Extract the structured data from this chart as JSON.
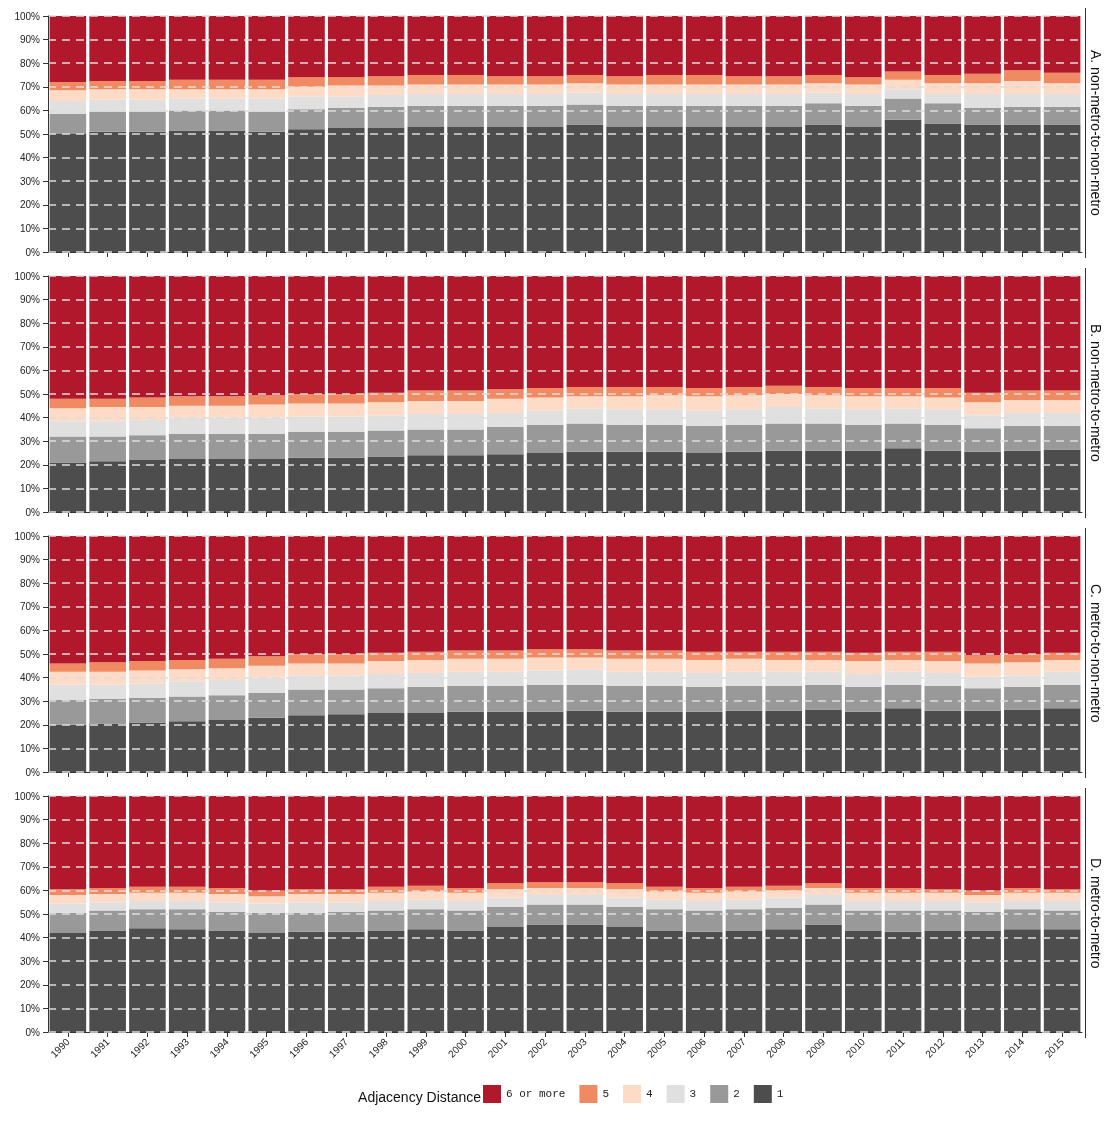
{
  "chart_data": [
    {
      "type": "bar",
      "title": "A. non-metro-to-non-metro",
      "stacked": true,
      "grid": "y",
      "tick_labels": "y",
      "ylim": [
        0,
        100
      ],
      "yticks": [
        {
          "value": 0,
          "label": "0%"
        },
        {
          "value": 10,
          "label": "10%"
        },
        {
          "value": 20,
          "label": "20%"
        },
        {
          "value": 30,
          "label": "30%"
        },
        {
          "value": 40,
          "label": "40%"
        },
        {
          "value": 50,
          "label": "50%"
        },
        {
          "value": 60,
          "label": "60%"
        },
        {
          "value": 70,
          "label": "70%"
        },
        {
          "value": 80,
          "label": "80%"
        },
        {
          "value": 90,
          "label": "90%"
        },
        {
          "value": 100,
          "label": "100%"
        }
      ],
      "categories": [
        "1990",
        "1991",
        "1992",
        "1993",
        "1994",
        "1995",
        "1996",
        "1997",
        "1998",
        "1999",
        "2000",
        "2001",
        "2002",
        "2003",
        "2004",
        "2005",
        "2006",
        "2007",
        "2008",
        "2009",
        "2010",
        "2011",
        "2012",
        "2013",
        "2014",
        "2015"
      ],
      "series": [
        {
          "color": "#4d4d4d",
          "values": [
            50,
            51,
            51,
            51.5,
            51.5,
            51,
            52,
            52.5,
            52.5,
            53,
            53,
            53,
            53,
            54,
            53,
            53,
            53,
            53,
            53,
            54,
            53,
            56,
            54.5,
            54,
            54,
            54
          ]
        },
        {
          "color": "#999999",
          "values": [
            8.5,
            8.5,
            8.5,
            8.5,
            8.5,
            8.5,
            8.5,
            8.5,
            9,
            9,
            9,
            9,
            9,
            8.5,
            9,
            9,
            9,
            9,
            9,
            9,
            9,
            9,
            8.5,
            7,
            7.5,
            7.5
          ]
        },
        {
          "color": "#e0e0e0",
          "values": [
            5.5,
            5,
            5,
            5,
            5,
            5.5,
            5.5,
            5,
            5,
            5,
            5,
            5,
            5,
            5,
            5,
            5,
            5,
            5,
            5,
            4.5,
            5,
            4,
            4,
            6,
            5.5,
            5.5
          ]
        },
        {
          "color": "#fddbc7",
          "values": [
            4.5,
            4.5,
            4.5,
            4,
            4,
            4,
            4,
            4.5,
            4,
            4,
            4,
            4,
            4,
            4,
            4,
            4,
            4,
            4,
            4,
            4,
            4,
            4,
            4.5,
            4.5,
            5.5,
            4.5
          ]
        },
        {
          "color": "#ef8a62",
          "values": [
            3.5,
            3.5,
            3.5,
            4,
            4,
            4,
            4,
            3.5,
            4,
            4,
            4,
            3.5,
            3.5,
            3.5,
            3.5,
            4,
            4,
            3.5,
            3.5,
            3.5,
            3,
            3.5,
            3.5,
            4,
            4.5,
            4.5
          ]
        },
        {
          "color": "#b2182b",
          "values": [
            28,
            27.5,
            27.5,
            27,
            27,
            27,
            26,
            26,
            25.5,
            25,
            25,
            25.5,
            25.5,
            25,
            25.5,
            25,
            25,
            25.5,
            25.5,
            25,
            26,
            23.5,
            25,
            24.5,
            23,
            24
          ]
        }
      ]
    },
    {
      "type": "bar",
      "title": "B. non-metro-to-metro",
      "stacked": true,
      "grid": "y",
      "tick_labels": "y",
      "ylim": [
        0,
        100
      ],
      "yticks": [
        {
          "value": 0,
          "label": "0%"
        },
        {
          "value": 10,
          "label": "10%"
        },
        {
          "value": 20,
          "label": "20%"
        },
        {
          "value": 30,
          "label": "30%"
        },
        {
          "value": 40,
          "label": "40%"
        },
        {
          "value": 50,
          "label": "50%"
        },
        {
          "value": 60,
          "label": "60%"
        },
        {
          "value": 70,
          "label": "70%"
        },
        {
          "value": 80,
          "label": "80%"
        },
        {
          "value": 90,
          "label": "90%"
        },
        {
          "value": 100,
          "label": "100%"
        }
      ],
      "categories": [
        "1990",
        "1991",
        "1992",
        "1993",
        "1994",
        "1995",
        "1996",
        "1997",
        "1998",
        "1999",
        "2000",
        "2001",
        "2002",
        "2003",
        "2004",
        "2005",
        "2006",
        "2007",
        "2008",
        "2009",
        "2010",
        "2011",
        "2012",
        "2013",
        "2014",
        "2015"
      ],
      "series": [
        {
          "color": "#4d4d4d",
          "values": [
            21,
            21.5,
            22,
            22.5,
            22.5,
            22.5,
            23,
            23,
            23.5,
            24,
            24,
            24.5,
            25,
            25.5,
            25.5,
            25.5,
            25,
            25.5,
            26,
            26,
            26,
            27,
            26,
            25.5,
            26,
            26.5
          ]
        },
        {
          "color": "#999999",
          "values": [
            11,
            10.5,
            10.5,
            10.5,
            10.5,
            10.5,
            11,
            11,
            11,
            11,
            11,
            11.5,
            12,
            12,
            11.5,
            11.5,
            11.5,
            11.5,
            11.5,
            11.5,
            11,
            10.5,
            11,
            10,
            10.5,
            10
          ]
        },
        {
          "color": "#e0e0e0",
          "values": [
            6.5,
            6.5,
            6.5,
            7,
            7,
            7,
            6.5,
            6.5,
            6.5,
            6.5,
            6.5,
            6,
            6,
            6.5,
            6.5,
            6.5,
            6.5,
            6.5,
            7,
            6.5,
            6.5,
            6.5,
            6.5,
            5.5,
            5.5,
            5.5
          ]
        },
        {
          "color": "#fddbc7",
          "values": [
            5.5,
            6,
            5.5,
            5,
            5,
            5.5,
            5.5,
            5.5,
            5.5,
            5.5,
            5.5,
            6,
            5.5,
            5,
            5.5,
            6,
            6,
            6,
            5.5,
            5.5,
            5.5,
            5,
            5,
            5.5,
            5.5,
            5.5
          ]
        },
        {
          "color": "#ef8a62",
          "values": [
            4,
            3.5,
            4,
            4,
            4,
            4,
            4,
            4,
            4,
            4.5,
            4.5,
            4,
            4,
            4,
            4,
            3.5,
            3.5,
            3.5,
            3.5,
            3.5,
            3.5,
            3.5,
            4,
            4,
            4,
            4
          ]
        },
        {
          "color": "#b2182b",
          "values": [
            52,
            52,
            51.5,
            51,
            51,
            50.5,
            50,
            50,
            49.5,
            48.5,
            48.5,
            48,
            47.5,
            47,
            47,
            47,
            47.5,
            47,
            46.5,
            47,
            47.5,
            47.5,
            47.5,
            49.5,
            48.5,
            48.5
          ]
        }
      ]
    },
    {
      "type": "bar",
      "title": "C. metro-to-non-metro",
      "stacked": true,
      "grid": "y",
      "tick_labels": "y",
      "ylim": [
        0,
        100
      ],
      "yticks": [
        {
          "value": 0,
          "label": "0%"
        },
        {
          "value": 10,
          "label": "10%"
        },
        {
          "value": 20,
          "label": "20%"
        },
        {
          "value": 30,
          "label": "30%"
        },
        {
          "value": 40,
          "label": "40%"
        },
        {
          "value": 50,
          "label": "50%"
        },
        {
          "value": 60,
          "label": "60%"
        },
        {
          "value": 70,
          "label": "70%"
        },
        {
          "value": 80,
          "label": "80%"
        },
        {
          "value": 90,
          "label": "90%"
        },
        {
          "value": 100,
          "label": "100%"
        }
      ],
      "categories": [
        "1990",
        "1991",
        "1992",
        "1993",
        "1994",
        "1995",
        "1996",
        "1997",
        "1998",
        "1999",
        "2000",
        "2001",
        "2002",
        "2003",
        "2004",
        "2005",
        "2006",
        "2007",
        "2008",
        "2009",
        "2010",
        "2011",
        "2012",
        "2013",
        "2014",
        "2015"
      ],
      "series": [
        {
          "color": "#4d4d4d",
          "values": [
            20,
            20.5,
            21,
            21.5,
            22,
            23,
            24,
            24.5,
            25,
            25,
            25.5,
            25.5,
            25.5,
            26,
            25.5,
            25.5,
            25.5,
            26,
            26,
            26.5,
            25.5,
            27,
            26,
            26,
            26.5,
            27
          ]
        },
        {
          "color": "#999999",
          "values": [
            10.5,
            10.5,
            10.5,
            10.5,
            10.5,
            10.5,
            11,
            10.5,
            10.5,
            11,
            11,
            11,
            11.5,
            11,
            11,
            11,
            10.5,
            10.5,
            10.5,
            10.5,
            10.5,
            10,
            10.5,
            9.5,
            9.5,
            10
          ]
        },
        {
          "color": "#e0e0e0",
          "values": [
            6.5,
            6,
            6,
            6.5,
            6.5,
            6.5,
            6,
            6,
            6,
            6,
            6,
            6,
            6,
            6.5,
            6,
            6,
            6,
            6,
            6,
            5.5,
            5.5,
            5.5,
            5.5,
            5,
            5,
            5.5
          ]
        },
        {
          "color": "#fddbc7",
          "values": [
            5.5,
            5.5,
            5.5,
            5,
            5,
            5,
            5,
            5,
            5.5,
            5.5,
            5.5,
            5.5,
            5.5,
            5,
            5.5,
            5.5,
            5.5,
            5.5,
            5,
            5,
            5.5,
            5,
            5,
            5.5,
            5.5,
            5
          ]
        },
        {
          "color": "#ef8a62",
          "values": [
            3.5,
            4,
            4,
            4,
            4,
            4,
            4,
            4,
            3.5,
            3.5,
            3.5,
            3.5,
            3.5,
            3.5,
            3.5,
            3.5,
            3.5,
            3,
            3.5,
            3.5,
            3.5,
            3.5,
            4,
            3.5,
            3.5,
            3
          ]
        },
        {
          "color": "#b2182b",
          "values": [
            54,
            53.5,
            53,
            52.5,
            52,
            51,
            50,
            50,
            49.5,
            49,
            48.5,
            48.5,
            48,
            48,
            48.5,
            48.5,
            49,
            49,
            49,
            49,
            49.5,
            49,
            49,
            50.5,
            50,
            49.5
          ]
        }
      ]
    },
    {
      "type": "bar",
      "title": "D. metro-to-metro",
      "stacked": true,
      "grid": "y",
      "legend": "bottom",
      "legend_title": "Adjacency Distance",
      "ylim": [
        0,
        100
      ],
      "yticks": [
        {
          "value": 0,
          "label": "0%"
        },
        {
          "value": 10,
          "label": "10%"
        },
        {
          "value": 20,
          "label": "20%"
        },
        {
          "value": 30,
          "label": "30%"
        },
        {
          "value": 40,
          "label": "40%"
        },
        {
          "value": 50,
          "label": "50%"
        },
        {
          "value": 60,
          "label": "60%"
        },
        {
          "value": 70,
          "label": "70%"
        },
        {
          "value": 80,
          "label": "80%"
        },
        {
          "value": 90,
          "label": "90%"
        },
        {
          "value": 100,
          "label": "100%"
        }
      ],
      "categories": [
        "1990",
        "1991",
        "1992",
        "1993",
        "1994",
        "1995",
        "1996",
        "1997",
        "1998",
        "1999",
        "2000",
        "2001",
        "2002",
        "2003",
        "2004",
        "2005",
        "2006",
        "2007",
        "2008",
        "2009",
        "2010",
        "2011",
        "2012",
        "2013",
        "2014",
        "2015"
      ],
      "series": [
        {
          "name": "1",
          "color": "#4d4d4d",
          "values": [
            42,
            43,
            44,
            43.5,
            43,
            42,
            42.5,
            42.5,
            43,
            43.5,
            43,
            44.5,
            45.5,
            45.5,
            44.5,
            43,
            42.5,
            43,
            43.5,
            45.5,
            43,
            42.5,
            43,
            43,
            43.5,
            43.5
          ]
        },
        {
          "name": "2",
          "color": "#999999",
          "values": [
            8.5,
            8.5,
            8,
            8.5,
            8,
            8.5,
            8,
            8.5,
            8.5,
            8.5,
            8.5,
            8.5,
            8.5,
            8.5,
            8.5,
            9,
            9,
            9,
            9,
            8.5,
            8.5,
            9,
            8.5,
            8,
            8.5,
            8
          ]
        },
        {
          "name": "3",
          "color": "#e0e0e0",
          "values": [
            4,
            3.5,
            3.5,
            3.5,
            4,
            4,
            4.5,
            4,
            4,
            4,
            4,
            4,
            4,
            4,
            4,
            4,
            4,
            4,
            4.5,
            4,
            4,
            4,
            4,
            4,
            3.5,
            4
          ]
        },
        {
          "name": "4",
          "color": "#fddbc7",
          "values": [
            3.5,
            3.5,
            3.5,
            3.5,
            3.5,
            3,
            3.5,
            3.5,
            3.5,
            3.5,
            3.5,
            3.5,
            3,
            3,
            3.5,
            3.5,
            3.5,
            3.5,
            3,
            3,
            3.5,
            3.5,
            3.5,
            3,
            3.5,
            3.5
          ]
        },
        {
          "name": "5",
          "color": "#ef8a62",
          "values": [
            2.5,
            2.5,
            2.5,
            2.5,
            2.5,
            2.5,
            2,
            2,
            2.5,
            2.5,
            2,
            2.5,
            2.5,
            2.5,
            2.5,
            2,
            2,
            2,
            2,
            2,
            2,
            2,
            1.5,
            2,
            2,
            1.5
          ]
        },
        {
          "name": "6 or more",
          "color": "#b2182b",
          "values": [
            39.5,
            39,
            38.5,
            38.5,
            39,
            40,
            39.5,
            39.5,
            38.5,
            38,
            39,
            37,
            36.5,
            36.5,
            37,
            38.5,
            39,
            38.5,
            38,
            37,
            39,
            39,
            39.5,
            40,
            39,
            39.5
          ]
        }
      ]
    }
  ]
}
